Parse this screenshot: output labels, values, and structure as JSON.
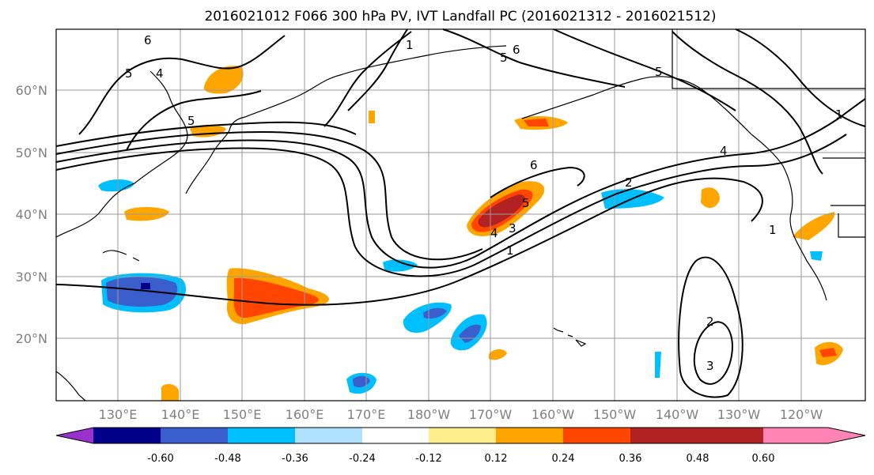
{
  "title": "2016021012 F066 300 hPa PV, IVT Landfall PC (2016021312 - 2016021512)",
  "map": {
    "lat_ticks": [
      "20°N",
      "30°N",
      "40°N",
      "50°N",
      "60°N"
    ],
    "lon_ticks": [
      "130°E",
      "140°E",
      "150°E",
      "160°E",
      "170°E",
      "180°W",
      "170°W",
      "160°W",
      "150°W",
      "140°W",
      "130°W",
      "120°W"
    ],
    "pv_contour_labels": [
      "1",
      "2",
      "3",
      "4",
      "5",
      "6"
    ]
  },
  "colorbar": {
    "labels": [
      "-0.60",
      "-0.48",
      "-0.36",
      "-0.24",
      "-0.12",
      "0.12",
      "0.24",
      "0.36",
      "0.48",
      "0.60"
    ],
    "colors": [
      "#9932cc",
      "#00008b",
      "#3a5fcd",
      "#00bfff",
      "#b0e2ff",
      "#ffffff",
      "#ffec8b",
      "#ffa500",
      "#ff4500",
      "#b22222",
      "#ff83b4"
    ]
  }
}
